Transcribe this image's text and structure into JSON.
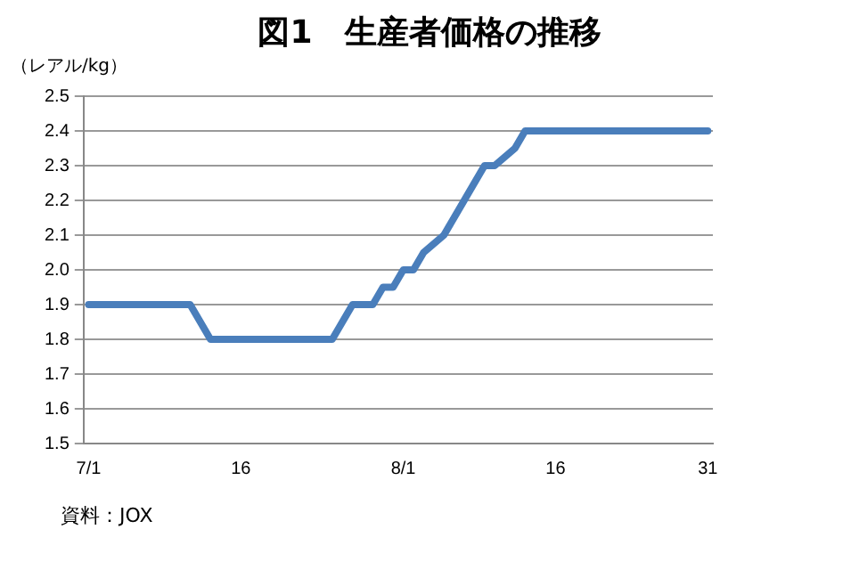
{
  "chart_data": {
    "type": "line",
    "title": "図1　生産者価格の推移",
    "ylabel": "（レアル/kg）",
    "categories": [
      "7/1",
      null,
      null,
      null,
      null,
      null,
      null,
      null,
      null,
      null,
      null,
      null,
      null,
      null,
      null,
      "16",
      null,
      null,
      null,
      null,
      null,
      null,
      null,
      null,
      null,
      null,
      null,
      null,
      null,
      null,
      null,
      "8/1",
      null,
      null,
      null,
      null,
      null,
      null,
      null,
      null,
      null,
      null,
      null,
      null,
      null,
      null,
      "16",
      null,
      null,
      null,
      null,
      null,
      null,
      null,
      null,
      null,
      null,
      null,
      null,
      null,
      null,
      "31"
    ],
    "series": [
      {
        "color": "#4a7ebb",
        "values": [
          1.9,
          1.9,
          1.9,
          1.9,
          1.9,
          1.9,
          1.9,
          1.9,
          1.9,
          1.9,
          1.9,
          1.85,
          1.8,
          1.8,
          1.8,
          1.8,
          1.8,
          1.8,
          1.8,
          1.8,
          1.8,
          1.8,
          1.8,
          1.8,
          1.8,
          1.85,
          1.9,
          1.9,
          1.9,
          1.95,
          1.95,
          2.0,
          2.0,
          2.05,
          2.075,
          2.1,
          2.15,
          2.2,
          2.25,
          2.3,
          2.3,
          2.325,
          2.35,
          2.4,
          2.4,
          2.4,
          2.4,
          2.4,
          2.4,
          2.4,
          2.4,
          2.4,
          2.4,
          2.4,
          2.4,
          2.4,
          2.4,
          2.4,
          2.4,
          2.4,
          2.4,
          2.4
        ]
      }
    ],
    "ylim": [
      1.5,
      2.5
    ],
    "yticks": [
      1.5,
      1.6,
      1.7,
      1.8,
      1.9,
      {
        "value": 2,
        "label": "2.0"
      },
      2.1,
      2.2,
      2.3,
      2.4,
      2.5
    ],
    "grid": "y",
    "legend": false,
    "marker": "none",
    "line_style": "solid",
    "annotations": [
      "資料：JOX"
    ]
  }
}
